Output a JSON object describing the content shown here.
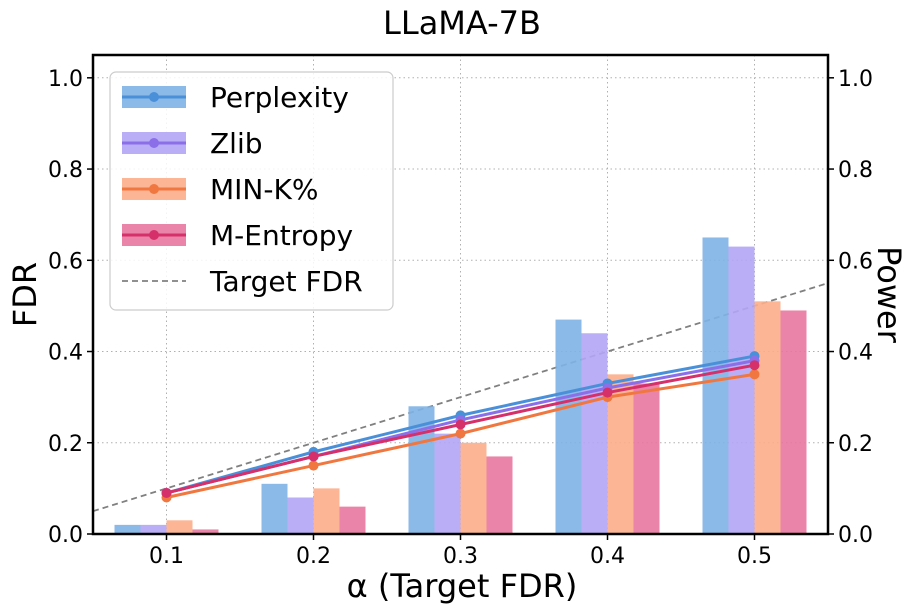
{
  "chart_data": {
    "type": "bar+line",
    "title": "LLaMA-7B",
    "xlabel": "α (Target FDR)",
    "ylabel_left": "FDR",
    "ylabel_right": "Power",
    "categories": [
      "0.1",
      "0.2",
      "0.3",
      "0.4",
      "0.5"
    ],
    "x": [
      0.1,
      0.2,
      0.3,
      0.4,
      0.5
    ],
    "xlim": [
      0.05,
      0.55
    ],
    "ylim": [
      0.0,
      1.05
    ],
    "yticks": [
      "0.0",
      "0.2",
      "0.4",
      "0.6",
      "0.8",
      "1.0"
    ],
    "grid": true,
    "legend_position": "top-left",
    "series": [
      {
        "name": "Perplexity",
        "color": "#4a90d9",
        "bar_color": "#7fb3e6",
        "fdr": [
          0.02,
          0.11,
          0.28,
          0.47,
          0.65
        ],
        "power": [
          0.09,
          0.18,
          0.26,
          0.33,
          0.39
        ]
      },
      {
        "name": "Zlib",
        "color": "#8a6fe8",
        "bar_color": "#b3a6f5",
        "fdr": [
          0.02,
          0.08,
          0.22,
          0.44,
          0.63
        ],
        "power": [
          0.09,
          0.17,
          0.25,
          0.32,
          0.38
        ]
      },
      {
        "name": "MIN-K%",
        "color": "#f07840",
        "bar_color": "#fcad8a",
        "fdr": [
          0.03,
          0.1,
          0.2,
          0.35,
          0.51
        ],
        "power": [
          0.08,
          0.15,
          0.22,
          0.3,
          0.35
        ]
      },
      {
        "name": "M-Entropy",
        "color": "#d6306b",
        "bar_color": "#e8779e",
        "fdr": [
          0.01,
          0.06,
          0.17,
          0.33,
          0.49
        ],
        "power": [
          0.09,
          0.17,
          0.24,
          0.31,
          0.37
        ]
      }
    ],
    "target_line": {
      "name": "Target FDR",
      "color": "#808080",
      "from": [
        0.05,
        0.05
      ],
      "to": [
        0.55,
        0.55
      ]
    }
  }
}
